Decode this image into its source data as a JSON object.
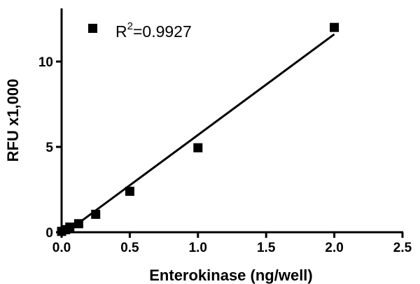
{
  "chart_data": {
    "type": "scatter",
    "xlabel": "Enterokinase (ng/well)",
    "ylabel": "RFU x1,000",
    "xlim": [
      0,
      2.5
    ],
    "ylim": [
      0,
      12.5
    ],
    "x_ticks": [
      "0.0",
      "0.5",
      "1.0",
      "1.5",
      "2.0",
      "2.5"
    ],
    "y_ticks": [
      "0",
      "5",
      "10"
    ],
    "grid": false,
    "legend": {
      "placement": "top-left",
      "r2_prefix": "R",
      "r2_exponent": "2",
      "r2_value": "=0.9927"
    },
    "series": [
      {
        "x": [
          0,
          0.03,
          0.06,
          0.125,
          0.25,
          0.5,
          1.0,
          2.0
        ],
        "y": [
          0.05,
          0.15,
          0.3,
          0.5,
          1.05,
          2.4,
          4.95,
          12.0
        ],
        "marker": "square",
        "color": "#000000"
      }
    ],
    "fit_line": {
      "x": [
        0,
        2.0
      ],
      "y": [
        -0.2,
        11.6
      ],
      "color": "#000000"
    }
  }
}
